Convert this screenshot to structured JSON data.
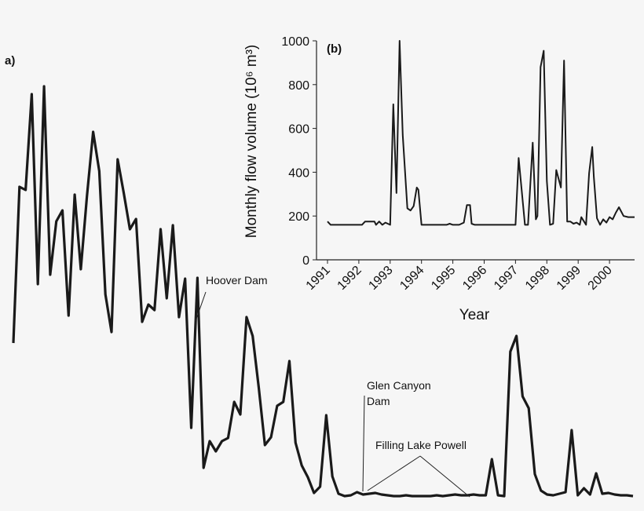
{
  "chart_data": [
    {
      "panel": "a)",
      "type": "line",
      "title": "",
      "xlabel": "",
      "ylabel": "",
      "annotations": [
        "Hoover Dam",
        "Glen Canyon",
        "Dam",
        "Filling Lake Powell"
      ],
      "series": [
        {
          "values": [
            437,
            238,
            242,
            120,
            362,
            110,
            350,
            282,
            268,
            402,
            248,
            343,
            250,
            168,
            218,
            375,
            423,
            203,
            246,
            292,
            279,
            410,
            388,
            395,
            292,
            380,
            287,
            404,
            355,
            545,
            354,
            596,
            562,
            575,
            562,
            558,
            512,
            528,
            404,
            428,
            494,
            567,
            557,
            517,
            512,
            460,
            564,
            593,
            608,
            628,
            620,
            529,
            607,
            629,
            632,
            631,
            627,
            630,
            629,
            628,
            630,
            631,
            632,
            632,
            631,
            632,
            632,
            632,
            632,
            631,
            632,
            631,
            630,
            631,
            631,
            630,
            631,
            631,
            585,
            631,
            632,
            448,
            428,
            505,
            520,
            604,
            625,
            630,
            631,
            629,
            627,
            548,
            631,
            622,
            630,
            603,
            629,
            628,
            630,
            631,
            631,
            632
          ]
        }
      ],
      "y_inverted_pixel_space": true,
      "yscale": "relative-flow (no axis shown)"
    },
    {
      "panel": "(b)",
      "type": "line",
      "title": "",
      "xlabel": "Year",
      "ylabel": "Monthly flow volume (10⁶ m³)",
      "ylim": [
        0,
        1000
      ],
      "yticks": [
        0,
        200,
        400,
        600,
        800,
        1000
      ],
      "xticks": [
        "1991",
        "1992",
        "1993",
        "1994",
        "1995",
        "1996",
        "1997",
        "1998",
        "1999",
        "2000"
      ],
      "xlim": [
        1991,
        2000.8
      ],
      "series": [
        {
          "x": [
            1991.0,
            1991.1,
            1991.3,
            1991.6,
            1991.9,
            1992.1,
            1992.2,
            1992.5,
            1992.55,
            1992.65,
            1992.75,
            1992.85,
            1993.0,
            1993.1,
            1993.2,
            1993.3,
            1993.4,
            1993.55,
            1993.65,
            1993.75,
            1993.85,
            1993.9,
            1994.0,
            1994.5,
            1994.8,
            1994.9,
            1995.0,
            1995.2,
            1995.35,
            1995.45,
            1995.55,
            1995.6,
            1995.7,
            1996.0,
            1996.5,
            1996.9,
            1997.0,
            1997.1,
            1997.3,
            1997.4,
            1997.55,
            1997.65,
            1997.7,
            1997.8,
            1997.9,
            1998.0,
            1998.1,
            1998.2,
            1998.3,
            1998.45,
            1998.55,
            1998.65,
            1998.75,
            1998.85,
            1998.95,
            1999.05,
            1999.1,
            1999.25,
            1999.35,
            1999.45,
            1999.5,
            1999.6,
            1999.7,
            1999.8,
            1999.9,
            2000.0,
            2000.1,
            2000.2,
            2000.3,
            2000.45,
            2000.6,
            2000.7,
            2000.8
          ],
          "y": [
            175,
            160,
            160,
            160,
            160,
            160,
            175,
            175,
            160,
            175,
            160,
            170,
            160,
            710,
            305,
            1000,
            570,
            235,
            225,
            245,
            330,
            320,
            160,
            160,
            160,
            165,
            160,
            160,
            170,
            250,
            250,
            165,
            160,
            160,
            160,
            160,
            160,
            465,
            160,
            160,
            535,
            185,
            200,
            880,
            955,
            360,
            160,
            165,
            410,
            330,
            910,
            175,
            175,
            165,
            170,
            160,
            195,
            160,
            395,
            515,
            380,
            190,
            160,
            185,
            170,
            195,
            185,
            215,
            240,
            200,
            195,
            195,
            195
          ]
        }
      ]
    }
  ]
}
